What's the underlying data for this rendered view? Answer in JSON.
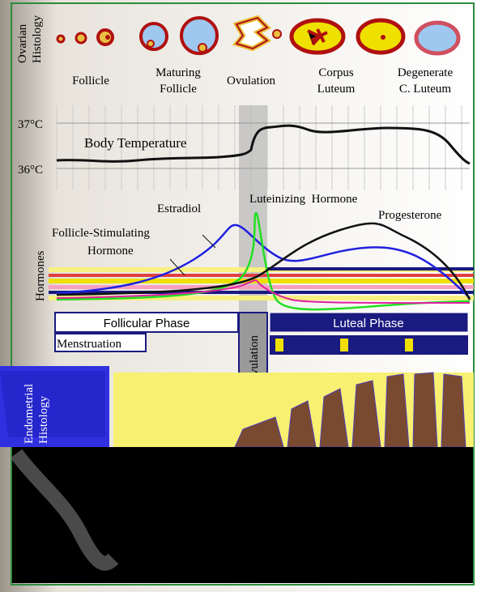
{
  "ovarian": {
    "title": [
      "Ovarian",
      "Histology"
    ],
    "stages": [
      {
        "label": [
          "Follicle"
        ]
      },
      {
        "label": [
          "Maturing",
          "Follicle"
        ]
      },
      {
        "label": [
          "Ovulation"
        ]
      },
      {
        "label": [
          "Corpus",
          "Luteum"
        ]
      },
      {
        "label": [
          "Degenerate",
          "C. Luteum"
        ]
      }
    ]
  },
  "temperature": {
    "high": "37°C",
    "low": "36°C",
    "label": "Body Temperature"
  },
  "hormones": {
    "title": "Hormones",
    "estradiol": "Estradiol",
    "lh": "Luteinizing  Hormone",
    "progesterone": "Progesterone",
    "fsh": [
      "Follicle-Stimulating",
      "Hormone"
    ]
  },
  "phases": {
    "follicular": "Follicular Phase",
    "luteal": "Luteal Phase",
    "menstruation": "Menstruation",
    "ovulation": "Ovulation"
  },
  "endometrial": {
    "title": [
      "Endometrial",
      "Histology"
    ]
  }
}
